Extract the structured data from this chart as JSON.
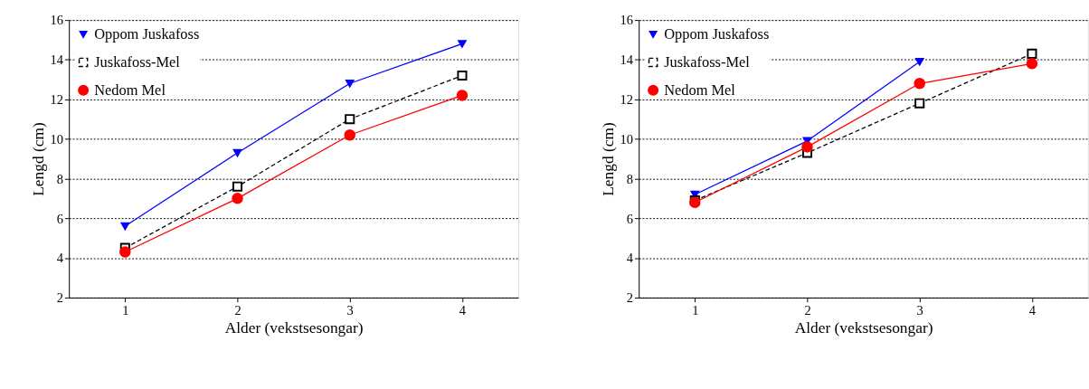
{
  "chart_data": [
    {
      "type": "line",
      "xlabel": "Alder (vekstsesongar)",
      "ylabel": "Lengd (cm)",
      "x": [
        1,
        2,
        3,
        4
      ],
      "xlim": [
        0.5,
        4.5
      ],
      "xticks": [
        1,
        2,
        3,
        4
      ],
      "ylim": [
        2,
        16
      ],
      "yticks": [
        2,
        4,
        6,
        8,
        10,
        12,
        14,
        16
      ],
      "grid": "y",
      "legend": "top left",
      "series": [
        {
          "name": "Oppom Juskafoss",
          "color": "#0000ff",
          "values": [
            5.6,
            9.3,
            12.8,
            14.8
          ],
          "marker": "triangle-down",
          "line_style": "solid"
        },
        {
          "name": "Juskafoss-Mel",
          "color": "#000000",
          "values": [
            4.5,
            7.6,
            11.0,
            13.2
          ],
          "marker": "square",
          "line_style": "dashed"
        },
        {
          "name": "Nedom Mel",
          "color": "#ff0000",
          "values": [
            4.3,
            7.0,
            10.2,
            12.2
          ],
          "marker": "circle",
          "line_style": "solid"
        }
      ]
    },
    {
      "type": "line",
      "xlabel": "Alder (vekstsesongar)",
      "ylabel": "Lengd (cm)",
      "x": [
        1,
        2,
        3,
        4
      ],
      "xlim": [
        0.5,
        4.5
      ],
      "xticks": [
        1,
        2,
        3,
        4
      ],
      "ylim": [
        2,
        16
      ],
      "yticks": [
        2,
        4,
        6,
        8,
        10,
        12,
        14,
        16
      ],
      "grid": "y",
      "legend": "top left",
      "series": [
        {
          "name": "Oppom Juskafoss",
          "color": "#0000ff",
          "values": [
            7.2,
            9.9,
            13.9,
            null
          ],
          "marker": "triangle-down",
          "line_style": "solid"
        },
        {
          "name": "Juskafoss-Mel",
          "color": "#000000",
          "values": [
            6.9,
            9.3,
            11.8,
            14.3
          ],
          "marker": "square",
          "line_style": "dashed"
        },
        {
          "name": "Nedom Mel",
          "color": "#ff0000",
          "values": [
            6.8,
            9.6,
            12.8,
            13.8
          ],
          "marker": "circle",
          "line_style": "solid"
        }
      ]
    }
  ]
}
